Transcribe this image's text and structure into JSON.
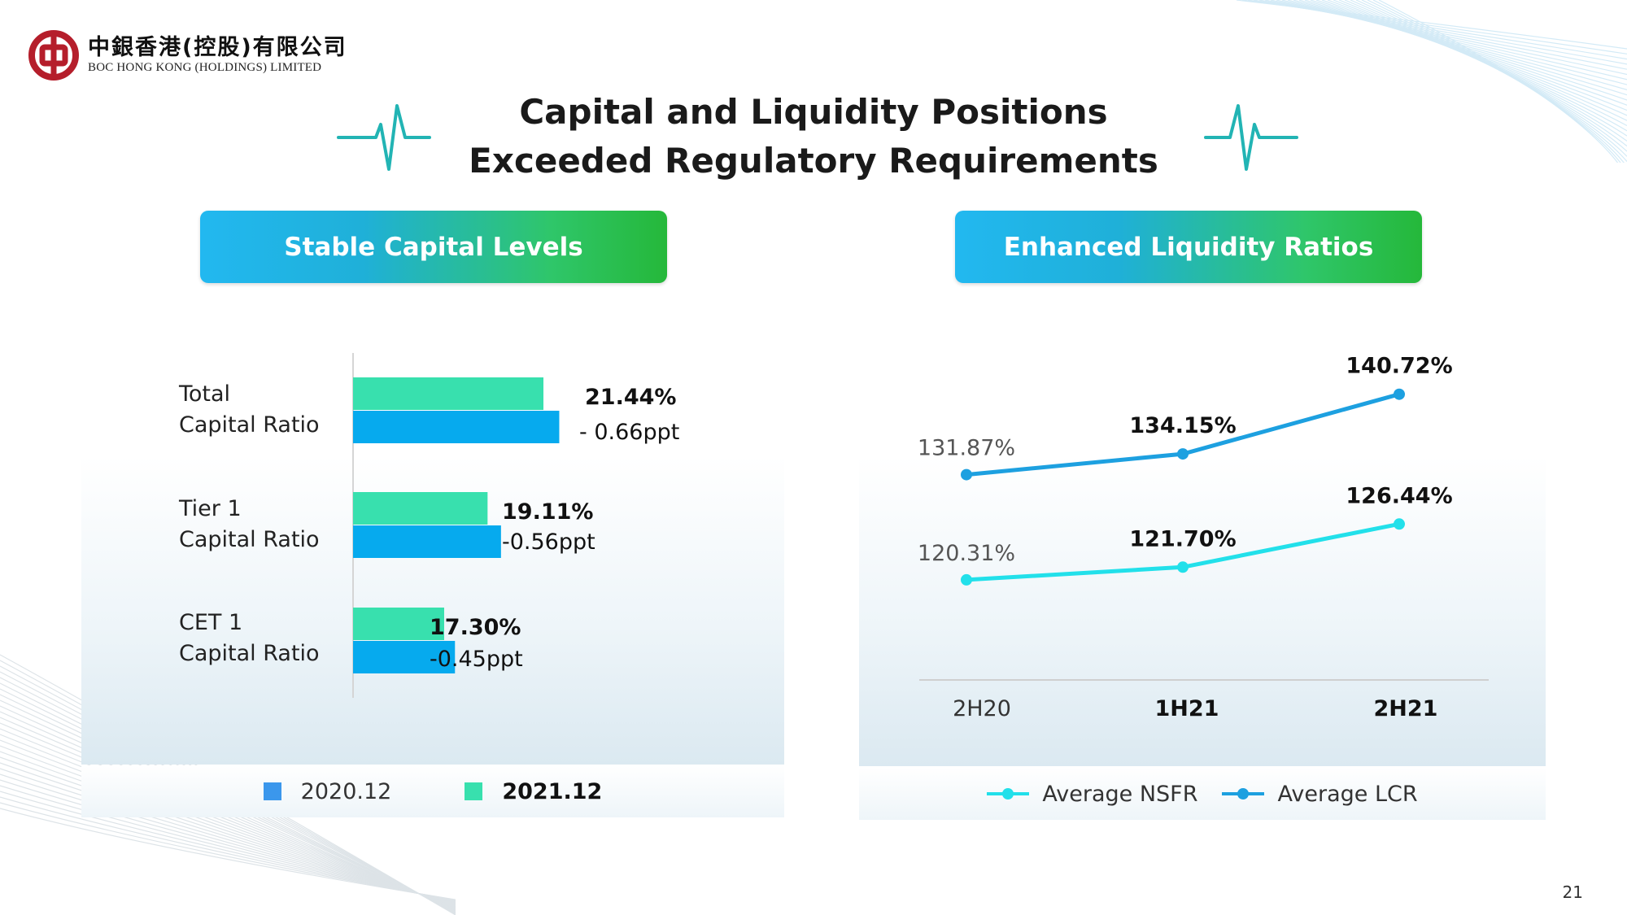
{
  "logo": {
    "cn": "中銀香港(控股)有限公司",
    "en": "BOC HONG KONG (HOLDINGS) LIMITED"
  },
  "title": {
    "line1": "Capital and Liquidity Positions",
    "line2": "Exceeded Regulatory Requirements"
  },
  "banners": {
    "left": "Stable Capital Levels",
    "right": "Enhanced Liquidity Ratios"
  },
  "colors": {
    "green": "#38e0ae",
    "blue": "#06aaee",
    "nsfr": "#22e0ea",
    "lcr": "#1da0e0",
    "logo_red": "#b51e2b"
  },
  "chart_data": [
    {
      "type": "bar",
      "orientation": "horizontal",
      "categories": [
        {
          "line1": "Total",
          "line2": "Capital Ratio"
        },
        {
          "line1": "Tier 1",
          "line2": "Capital Ratio"
        },
        {
          "line1": "CET 1",
          "line2": "Capital Ratio"
        }
      ],
      "series": [
        {
          "name": "2021.12",
          "values": [
            21.44,
            19.11,
            17.3
          ],
          "color": "#38e0ae"
        },
        {
          "name": "2020.12",
          "values": [
            22.1,
            19.67,
            17.75
          ],
          "color": "#06aaee"
        }
      ],
      "value_labels": [
        "21.44%",
        "19.11%",
        "17.30%"
      ],
      "change_labels": [
        "- 0.66ppt",
        "-0.56ppt",
        "-0.45ppt"
      ],
      "legend": [
        {
          "label": "2020.12",
          "color": "#3b97ec",
          "bold": false
        },
        {
          "label": "2021.12",
          "color": "#38e0ae",
          "bold": true
        }
      ],
      "xlim": [
        13.5,
        23.0
      ]
    },
    {
      "type": "line",
      "x": [
        "2H20",
        "1H21",
        "2H21"
      ],
      "x_bold": [
        false,
        true,
        true
      ],
      "series": [
        {
          "name": "Average NSFR",
          "values": [
            120.31,
            121.7,
            126.44
          ],
          "labels": [
            "120.31%",
            "121.70%",
            "126.44%"
          ],
          "color": "#22e0ea"
        },
        {
          "name": "Average LCR",
          "values": [
            131.87,
            134.15,
            140.72
          ],
          "labels": [
            "131.87%",
            "134.15%",
            "140.72%"
          ],
          "color": "#1da0e0"
        }
      ],
      "ylim": [
        109.3,
        144.0
      ]
    }
  ],
  "page_number": "21"
}
